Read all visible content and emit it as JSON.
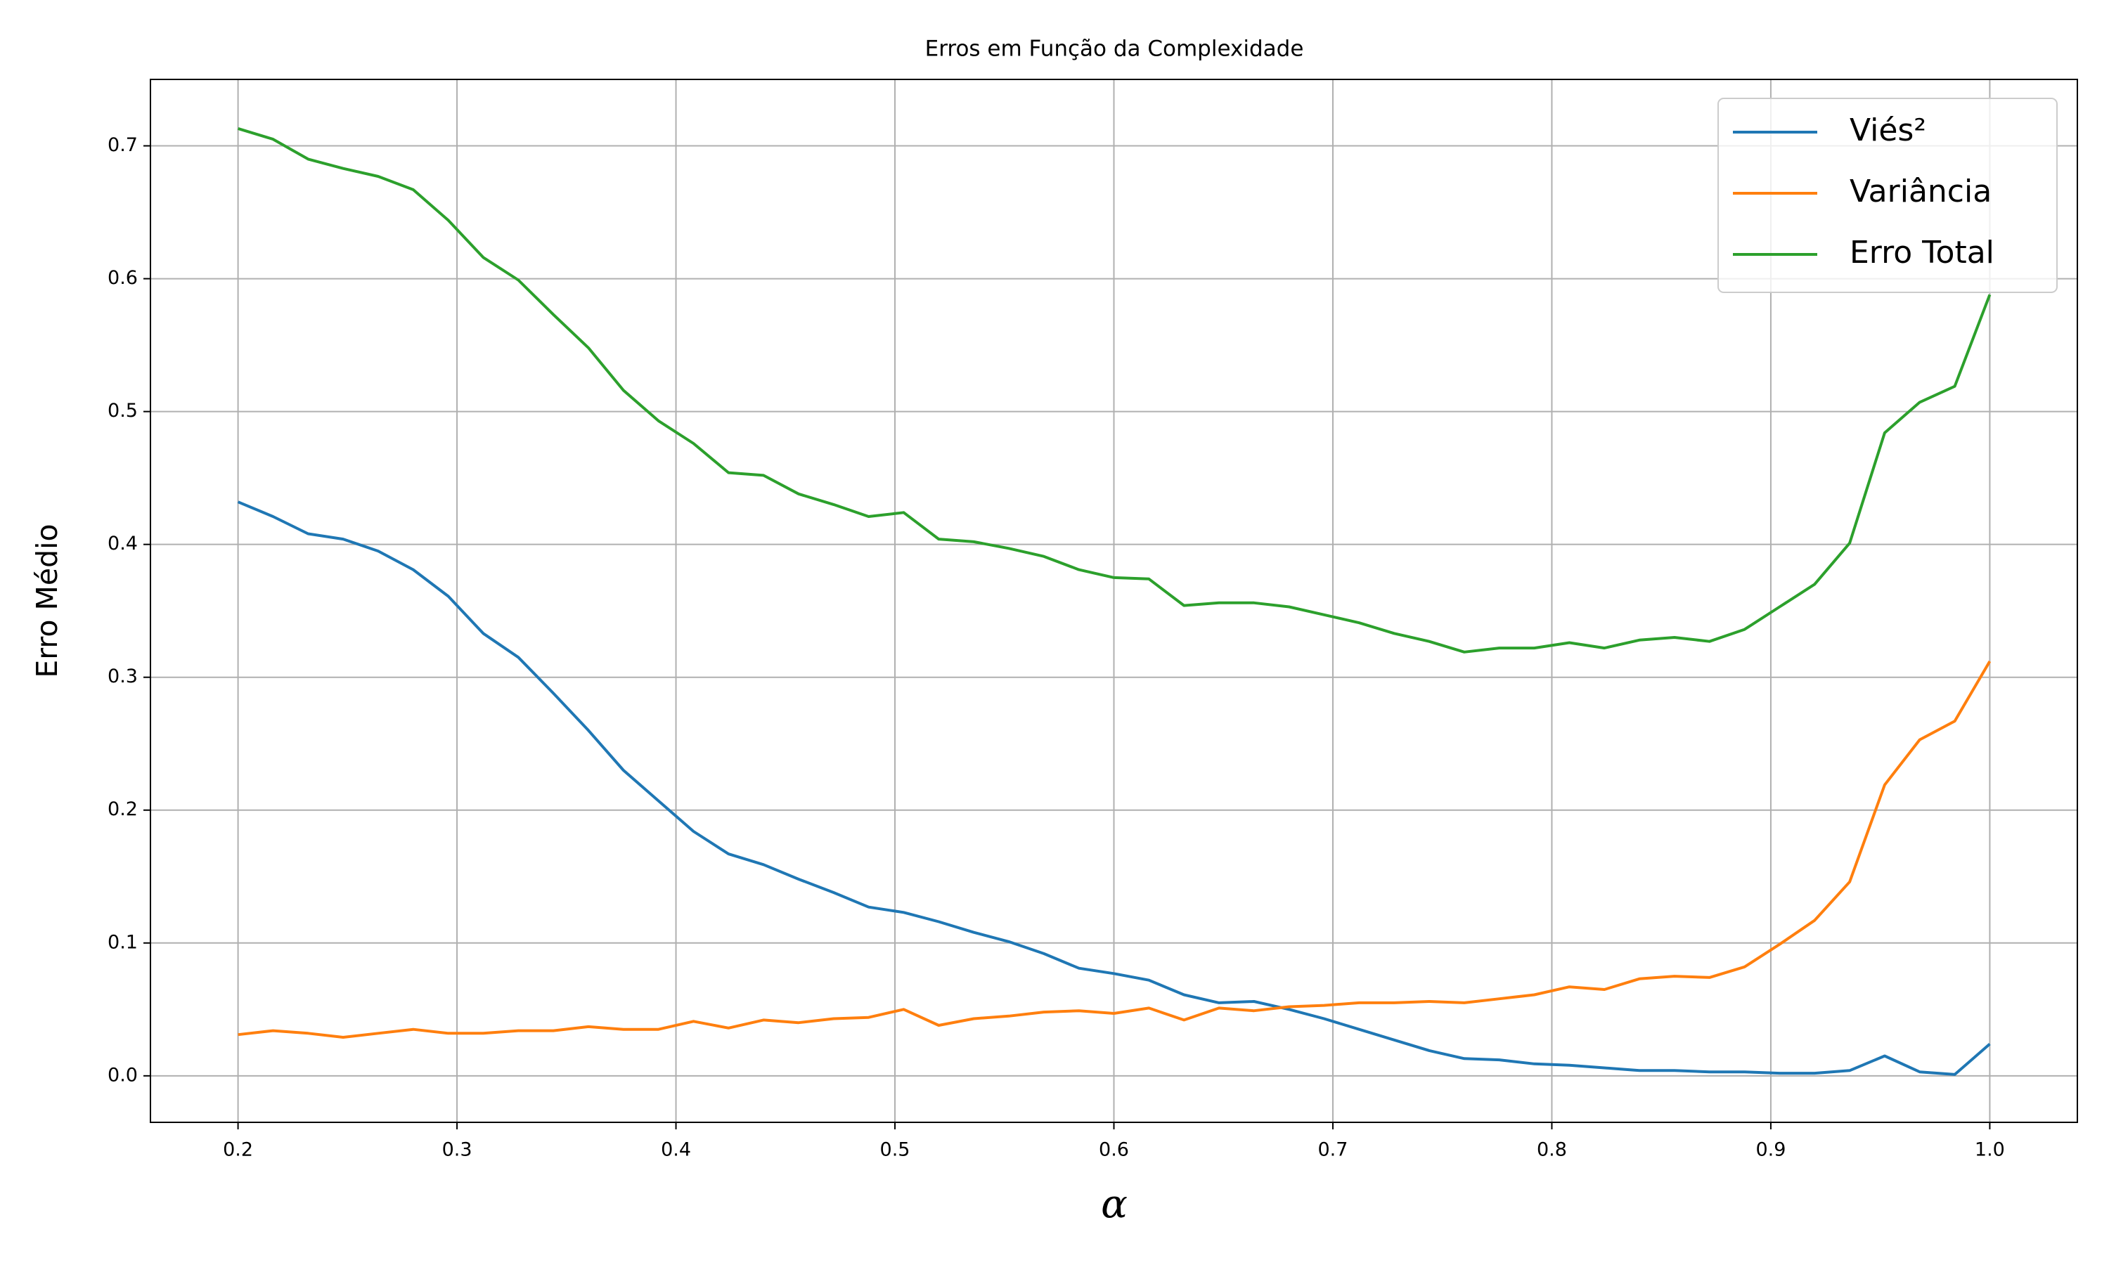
{
  "chart_data": {
    "type": "line",
    "title": "Erros em Função da Complexidade",
    "xlabel": "α",
    "ylabel": "Erro Médio",
    "x": [
      0.2,
      0.216,
      0.232,
      0.248,
      0.264,
      0.28,
      0.296,
      0.312,
      0.328,
      0.344,
      0.36,
      0.376,
      0.392,
      0.408,
      0.424,
      0.44,
      0.456,
      0.472,
      0.488,
      0.504,
      0.52,
      0.536,
      0.552,
      0.568,
      0.584,
      0.6,
      0.616,
      0.632,
      0.648,
      0.664,
      0.68,
      0.696,
      0.712,
      0.728,
      0.744,
      0.76,
      0.776,
      0.792,
      0.808,
      0.824,
      0.84,
      0.856,
      0.872,
      0.888,
      0.904,
      0.92,
      0.936,
      0.952,
      0.968,
      0.984,
      1.0
    ],
    "series": [
      {
        "name": "Viés²",
        "color": "#1f77b4",
        "values": [
          0.432,
          0.421,
          0.408,
          0.404,
          0.395,
          0.381,
          0.361,
          0.333,
          0.315,
          0.288,
          0.26,
          0.23,
          0.207,
          0.184,
          0.167,
          0.159,
          0.148,
          0.138,
          0.127,
          0.123,
          0.116,
          0.108,
          0.101,
          0.092,
          0.081,
          0.077,
          0.072,
          0.061,
          0.055,
          0.056,
          0.05,
          0.043,
          0.035,
          0.027,
          0.019,
          0.013,
          0.012,
          0.009,
          0.008,
          0.006,
          0.004,
          0.004,
          0.003,
          0.003,
          0.002,
          0.002,
          0.004,
          0.015,
          0.003,
          0.001,
          0.024
        ]
      },
      {
        "name": "Variância",
        "color": "#ff7f0e",
        "values": [
          0.031,
          0.034,
          0.032,
          0.029,
          0.032,
          0.035,
          0.032,
          0.032,
          0.034,
          0.034,
          0.037,
          0.035,
          0.035,
          0.041,
          0.036,
          0.042,
          0.04,
          0.043,
          0.044,
          0.05,
          0.038,
          0.043,
          0.045,
          0.048,
          0.049,
          0.047,
          0.051,
          0.042,
          0.051,
          0.049,
          0.052,
          0.053,
          0.055,
          0.055,
          0.056,
          0.055,
          0.058,
          0.061,
          0.067,
          0.065,
          0.073,
          0.075,
          0.074,
          0.082,
          0.099,
          0.117,
          0.146,
          0.219,
          0.253,
          0.267,
          0.312
        ]
      },
      {
        "name": "Erro Total",
        "color": "#2ca02c",
        "values": [
          0.713,
          0.705,
          0.69,
          0.683,
          0.677,
          0.667,
          0.644,
          0.616,
          0.599,
          0.573,
          0.548,
          0.516,
          0.493,
          0.476,
          0.454,
          0.452,
          0.438,
          0.43,
          0.421,
          0.424,
          0.404,
          0.402,
          0.397,
          0.391,
          0.381,
          0.375,
          0.374,
          0.354,
          0.356,
          0.356,
          0.353,
          0.347,
          0.341,
          0.333,
          0.327,
          0.319,
          0.322,
          0.322,
          0.326,
          0.322,
          0.328,
          0.33,
          0.327,
          0.336,
          0.353,
          0.37,
          0.401,
          0.484,
          0.507,
          0.519,
          0.588
        ]
      }
    ],
    "xlim": [
      0.16,
      1.04
    ],
    "ylim": [
      -0.035,
      0.75
    ],
    "xticks": [
      0.2,
      0.3,
      0.4,
      0.5,
      0.6,
      0.7,
      0.8,
      0.9,
      {
        "value": 1.0,
        "label": "1.0"
      }
    ],
    "yticks": [
      {
        "value": 0,
        "label": "0.0"
      },
      0.1,
      0.2,
      0.3,
      0.4,
      0.5,
      0.6,
      0.7
    ],
    "grid": true,
    "legend": "upper right"
  }
}
